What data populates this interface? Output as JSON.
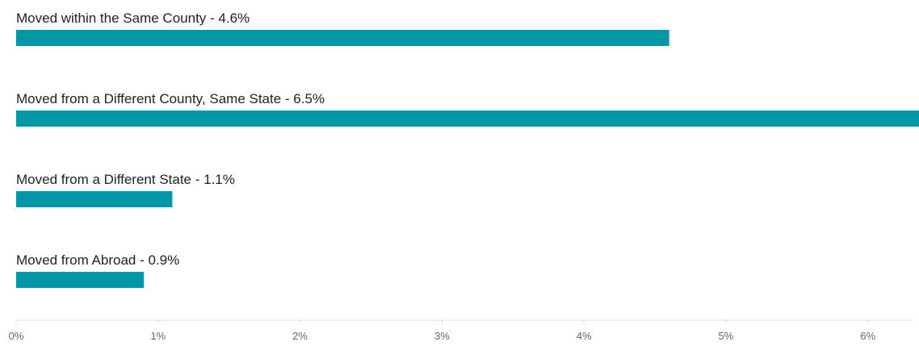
{
  "chart_data": {
    "type": "bar",
    "orientation": "horizontal",
    "categories": [
      "Moved within the Same County",
      "Moved from a Different County, Same State",
      "Moved from a Different State",
      "Moved from Abroad"
    ],
    "values": [
      4.6,
      6.5,
      1.1,
      0.9
    ],
    "bar_labels": [
      "Moved within the Same County - 4.6%",
      "Moved from a Different County, Same State - 6.5%",
      "Moved from a Different State - 1.1%",
      "Moved from Abroad - 0.9%"
    ],
    "x_ticks": [
      0,
      1,
      2,
      3,
      4,
      5,
      6
    ],
    "x_tick_labels": [
      "0%",
      "1%",
      "2%",
      "3%",
      "4%",
      "5%",
      "6%"
    ],
    "xlim": [
      0,
      6.32
    ],
    "bar_color": "#0097a7",
    "axis_color": "#dddddd",
    "title": "",
    "xlabel": "",
    "ylabel": "",
    "grid": false,
    "legend": "none"
  }
}
